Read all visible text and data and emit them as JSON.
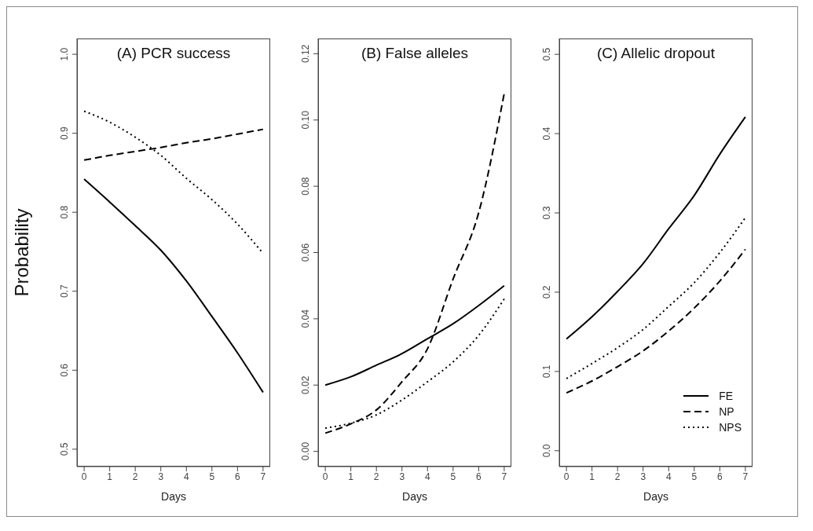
{
  "chart_data": [
    {
      "type": "line",
      "title": "(A) PCR success",
      "xlabel": "Days",
      "ylabel": "Probability",
      "xlim": [
        -0.28,
        7.28
      ],
      "xticks": [
        0,
        1,
        2,
        3,
        4,
        5,
        6,
        7
      ],
      "ylim": [
        0.478,
        1.02
      ],
      "yticks": [
        0.5,
        0.6,
        0.7,
        0.8,
        0.9,
        {
          "value": 1,
          "label": "1.0"
        }
      ],
      "x": [
        0,
        1,
        2,
        3,
        4,
        5,
        6,
        7
      ],
      "series": [
        {
          "color": "#000000",
          "line_style": "solid",
          "values": [
            0.842,
            0.813,
            0.783,
            0.752,
            0.713,
            0.668,
            0.622,
            0.572
          ]
        },
        {
          "color": "#000000",
          "line_style": "dashed",
          "values": [
            0.866,
            0.872,
            0.877,
            0.882,
            0.888,
            0.893,
            0.899,
            0.905
          ]
        },
        {
          "color": "#000000",
          "line_style": "dotted",
          "values": [
            0.928,
            0.914,
            0.895,
            0.872,
            0.843,
            0.816,
            0.785,
            0.748
          ]
        }
      ]
    },
    {
      "type": "line",
      "title": "(B) False alleles",
      "xlabel": "Days",
      "xlim": [
        -0.28,
        7.28
      ],
      "xticks": [
        0,
        1,
        2,
        3,
        4,
        5,
        6,
        7
      ],
      "ylim": [
        -0.0046,
        0.1246
      ],
      "yticks": [
        {
          "value": 0,
          "label": "0.00"
        },
        0.02,
        0.04,
        0.06,
        0.08,
        {
          "value": 0.1,
          "label": "0.10"
        },
        0.12
      ],
      "x": [
        0,
        1,
        2,
        3,
        4,
        5,
        6,
        7
      ],
      "series": [
        {
          "color": "#000000",
          "line_style": "solid",
          "values": [
            0.02,
            0.0225,
            0.026,
            0.0295,
            0.034,
            0.0385,
            0.044,
            0.05
          ]
        },
        {
          "color": "#000000",
          "line_style": "dashed",
          "values": [
            0.0055,
            0.0083,
            0.0125,
            0.021,
            0.031,
            0.052,
            0.072,
            0.108
          ]
        },
        {
          "color": "#000000",
          "line_style": "dotted",
          "values": [
            0.007,
            0.0085,
            0.011,
            0.0155,
            0.021,
            0.027,
            0.035,
            0.046
          ]
        }
      ]
    },
    {
      "type": "line",
      "title": "(C) Allelic dropout",
      "xlabel": "Days",
      "xlim": [
        -0.28,
        7.28
      ],
      "xticks": [
        0,
        1,
        2,
        3,
        4,
        5,
        6,
        7
      ],
      "ylim": [
        -0.02,
        0.52
      ],
      "yticks": [
        {
          "value": 0,
          "label": "0.0"
        },
        0.1,
        0.2,
        0.3,
        0.4,
        0.5
      ],
      "x": [
        0,
        1,
        2,
        3,
        4,
        5,
        6,
        7
      ],
      "legend": "bottom right",
      "series": [
        {
          "name": "FE",
          "color": "#000000",
          "line_style": "solid",
          "values": [
            0.141,
            0.169,
            0.201,
            0.236,
            0.28,
            0.322,
            0.374,
            0.421
          ]
        },
        {
          "name": "NP",
          "color": "#000000",
          "line_style": "dashed",
          "values": [
            0.073,
            0.088,
            0.106,
            0.126,
            0.151,
            0.18,
            0.214,
            0.254
          ]
        },
        {
          "name": "NPS",
          "color": "#000000",
          "line_style": "dotted",
          "values": [
            0.091,
            0.11,
            0.13,
            0.153,
            0.182,
            0.212,
            0.25,
            0.294
          ]
        }
      ]
    }
  ]
}
